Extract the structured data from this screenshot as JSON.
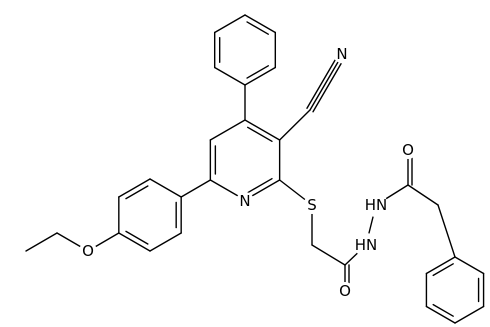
{
  "labels": [
    "N",
    "N",
    "S",
    "O",
    "O",
    "O",
    "HN",
    "HN"
  ]
}
